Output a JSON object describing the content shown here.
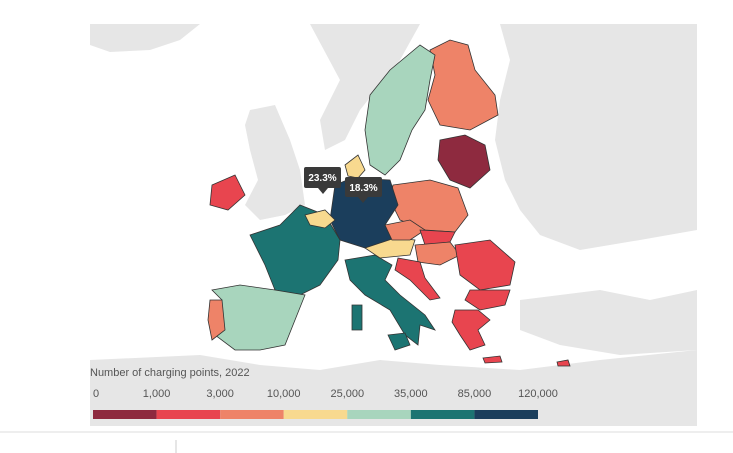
{
  "legend": {
    "title": "Number of charging points, 2022",
    "ticks": [
      "0",
      "1,000",
      "3,000",
      "10,000",
      "25,000",
      "35,000",
      "85,000",
      "120,000"
    ],
    "colors": [
      "#8e2a3f",
      "#e8454f",
      "#ee8368",
      "#f8d98f",
      "#a8d5bd",
      "#1c7472",
      "#1b3e5c"
    ]
  },
  "annotations": [
    "23.3%",
    "18.3%"
  ]
}
